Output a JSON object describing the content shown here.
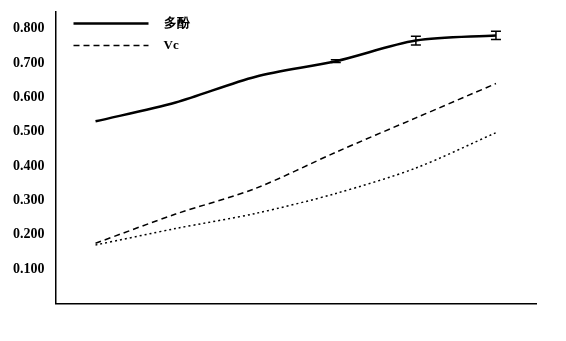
{
  "chart_data": {
    "type": "line",
    "categories": [
      null,
      null,
      null,
      null,
      null,
      null
    ],
    "series": [
      {
        "name": "多酚",
        "color": "#000000",
        "line_style": "solid",
        "values": [
          0.53,
          0.585,
          0.66,
          0.705,
          0.765,
          0.78
        ],
        "errors": [
          null,
          null,
          null,
          0.004,
          0.013,
          0.012
        ]
      },
      {
        "name": "Vc",
        "color": "#000000",
        "line_style": "dashed",
        "values": [
          0.175,
          0.26,
          0.335,
          0.44,
          0.54,
          0.64
        ]
      },
      {
        "color": "#000000",
        "line_style": "dotted",
        "values": [
          0.17,
          0.218,
          0.262,
          0.32,
          0.394,
          0.497
        ]
      }
    ],
    "ylim": [
      0,
      0.85
    ],
    "yticks": [
      {
        "value": 0.1,
        "label": "0.100"
      },
      {
        "value": 0.2,
        "label": "0.200"
      },
      {
        "value": 0.3,
        "label": "0.300"
      },
      {
        "value": 0.4,
        "label": "0.400"
      },
      {
        "value": 0.5,
        "label": "0.500"
      },
      {
        "value": 0.6,
        "label": "0.600"
      },
      {
        "value": 0.7,
        "label": "0.700"
      },
      {
        "value": 0.8,
        "label": "0.800"
      }
    ],
    "grid": false,
    "legend": "top-left"
  }
}
